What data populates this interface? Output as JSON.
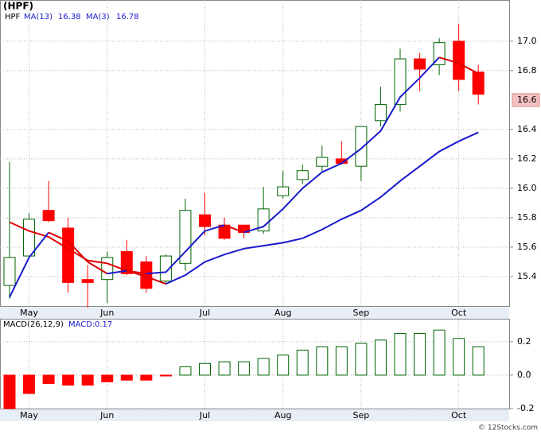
{
  "chart_data": {
    "type": "candlestick",
    "title": "(HPF)",
    "symbol": "HPF",
    "categories": [
      null,
      "May",
      null,
      null,
      null,
      "Jun",
      null,
      null,
      null,
      null,
      "Jul",
      null,
      null,
      null,
      "Aug",
      null,
      null,
      null,
      "Sep",
      null,
      null,
      null,
      null,
      "Oct",
      null
    ],
    "open": [
      15.34,
      15.54,
      15.85,
      15.73,
      15.38,
      15.38,
      15.57,
      15.5,
      15.37,
      15.49,
      15.82,
      15.75,
      15.75,
      15.71,
      15.95,
      16.06,
      16.15,
      16.2,
      16.15,
      16.46,
      16.57,
      16.88,
      16.84,
      17.0,
      16.79
    ],
    "high": [
      16.18,
      15.83,
      16.05,
      15.8,
      15.48,
      15.57,
      15.65,
      15.54,
      15.55,
      15.93,
      15.97,
      15.8,
      15.75,
      16.01,
      16.12,
      16.16,
      16.29,
      16.32,
      16.42,
      16.69,
      16.95,
      16.92,
      17.02,
      17.12,
      16.84
    ],
    "low": [
      15.25,
      15.53,
      15.77,
      15.29,
      15.19,
      15.22,
      15.41,
      15.29,
      15.35,
      15.44,
      15.68,
      15.65,
      15.66,
      15.69,
      15.93,
      16.03,
      16.11,
      16.16,
      16.05,
      16.42,
      16.52,
      16.66,
      16.77,
      16.66,
      16.57
    ],
    "close": [
      15.53,
      15.79,
      15.78,
      15.36,
      15.36,
      15.53,
      15.42,
      15.32,
      15.54,
      15.85,
      15.74,
      15.66,
      15.7,
      15.86,
      16.01,
      16.12,
      16.21,
      16.17,
      16.42,
      16.57,
      16.88,
      16.81,
      16.99,
      16.74,
      16.64
    ],
    "up_color": "#006400",
    "down_color": "#ff0000",
    "series": [
      {
        "name": "MA(13)",
        "legend_value": 16.38,
        "values": [
          15.77,
          15.71,
          15.67,
          15.59,
          15.51,
          15.49,
          15.44,
          15.4,
          15.35,
          15.41,
          15.5,
          15.55,
          15.59,
          15.61,
          15.63,
          15.66,
          15.72,
          15.79,
          15.85,
          15.94,
          16.05,
          16.15,
          16.25,
          16.32,
          16.38
        ]
      },
      {
        "name": "MA(3)",
        "legend_value": 16.78,
        "values": [
          15.26,
          15.53,
          15.7,
          15.64,
          15.5,
          15.42,
          15.44,
          15.42,
          15.43,
          15.57,
          15.71,
          15.75,
          15.7,
          15.74,
          15.86,
          16.0,
          16.11,
          16.17,
          16.27,
          16.39,
          16.62,
          16.75,
          16.89,
          16.85,
          16.78
        ]
      }
    ],
    "ma_up_color": "#1a1acd",
    "ma_down_color": "#e00000",
    "ylim": [
      15.2,
      17.28
    ],
    "yticks": [
      {
        "value": 17.0,
        "label": "17.0"
      },
      16.8,
      16.4,
      16.2,
      {
        "value": 16.0,
        "label": "16.0"
      },
      15.8,
      15.6,
      15.4
    ],
    "last_label": {
      "value": 16.6,
      "label": "16.6"
    },
    "grid": true,
    "macd": {
      "name": "MACD(26,12,9)",
      "legend_label": "MACD:",
      "legend_value": 0.17,
      "values": [
        -0.2,
        -0.11,
        -0.05,
        -0.06,
        -0.06,
        -0.04,
        -0.03,
        -0.03,
        -0.005,
        0.05,
        0.07,
        0.08,
        0.08,
        0.1,
        0.12,
        0.15,
        0.17,
        0.17,
        0.19,
        0.21,
        0.25,
        0.25,
        0.27,
        0.22,
        0.17
      ],
      "ylim": [
        -0.205,
        0.333
      ],
      "yticks": [
        0.2,
        {
          "value": 0.0,
          "label": "0.0"
        },
        -0.2
      ]
    },
    "footer": "© 12Stocks.com"
  }
}
